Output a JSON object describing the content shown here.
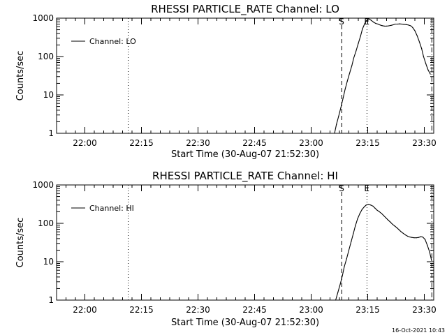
{
  "timestamp": "16-Oct-2021 10:43",
  "chart_data": [
    {
      "type": "line",
      "title": "RHESSI PARTICLE_RATE Channel: LO",
      "xlabel": "Start Time (30-Aug-07 21:52:30)",
      "ylabel": "Counts/sec",
      "x_unit": "minutes after 21:52:30",
      "xlim": [
        0,
        100
      ],
      "ylim": [
        1,
        1000
      ],
      "yscale": "log",
      "xticks": [
        {
          "label": "22:00",
          "x": 7.5
        },
        {
          "label": "22:15",
          "x": 22.5
        },
        {
          "label": "22:30",
          "x": 37.5
        },
        {
          "label": "22:45",
          "x": 52.5
        },
        {
          "label": "23:00",
          "x": 67.5
        },
        {
          "label": "23:15",
          "x": 82.5
        },
        {
          "label": "23:30",
          "x": 97.5
        }
      ],
      "yticks": [
        {
          "label": "1",
          "v": 1
        },
        {
          "label": "10",
          "v": 10
        },
        {
          "label": "100",
          "v": 100
        },
        {
          "label": "1000",
          "v": 1000
        }
      ],
      "legend": {
        "label": "Channel: LO",
        "position": "top-left"
      },
      "vlines": [
        {
          "x": 19.0,
          "style": "dotted"
        },
        {
          "x": 75.6,
          "style": "dashed",
          "label": "S"
        },
        {
          "x": 82.3,
          "style": "dotted",
          "label": "E"
        },
        {
          "x": 99.5,
          "style": "dashdot"
        }
      ],
      "series": [
        {
          "name": "Channel: LO",
          "x": [
            73.7,
            74.2,
            74.8,
            75.4,
            76.0,
            76.5,
            77.1,
            77.7,
            78.3,
            78.8,
            79.4,
            80.0,
            80.6,
            81.1,
            81.7,
            82.3,
            82.9,
            83.4,
            84.0,
            84.6,
            85.2,
            85.8,
            86.3,
            86.9,
            87.5,
            88.1,
            88.7,
            89.2,
            89.8,
            90.4,
            91.0,
            91.5,
            92.1,
            92.7,
            93.3,
            93.9,
            94.4,
            95.0,
            95.6,
            96.2,
            96.8,
            97.3,
            97.9,
            98.5,
            99.1
          ],
          "y": [
            1,
            1.7,
            2.8,
            4.8,
            8.5,
            14,
            23,
            37,
            58,
            92,
            140,
            220,
            340,
            520,
            720,
            900,
            950,
            880,
            790,
            730,
            700,
            660,
            640,
            620,
            620,
            630,
            650,
            670,
            700,
            700,
            710,
            700,
            690,
            680,
            660,
            630,
            570,
            470,
            350,
            240,
            160,
            100,
            65,
            45,
            35
          ]
        }
      ]
    },
    {
      "type": "line",
      "title": "RHESSI PARTICLE_RATE Channel: HI",
      "xlabel": "Start Time (30-Aug-07 21:52:30)",
      "ylabel": "Counts/sec",
      "x_unit": "minutes after 21:52:30",
      "xlim": [
        0,
        100
      ],
      "ylim": [
        1,
        1000
      ],
      "yscale": "log",
      "xticks": [
        {
          "label": "22:00",
          "x": 7.5
        },
        {
          "label": "22:15",
          "x": 22.5
        },
        {
          "label": "22:30",
          "x": 37.5
        },
        {
          "label": "22:45",
          "x": 52.5
        },
        {
          "label": "23:00",
          "x": 67.5
        },
        {
          "label": "23:15",
          "x": 82.5
        },
        {
          "label": "23:30",
          "x": 97.5
        }
      ],
      "yticks": [
        {
          "label": "1",
          "v": 1
        },
        {
          "label": "10",
          "v": 10
        },
        {
          "label": "100",
          "v": 100
        },
        {
          "label": "1000",
          "v": 1000
        }
      ],
      "legend": {
        "label": "Channel: HI",
        "position": "top-left"
      },
      "vlines": [
        {
          "x": 19.0,
          "style": "dotted"
        },
        {
          "x": 75.6,
          "style": "dashed",
          "label": "S"
        },
        {
          "x": 82.3,
          "style": "dotted",
          "label": "E"
        },
        {
          "x": 99.5,
          "style": "dashdot"
        }
      ],
      "series": [
        {
          "name": "Channel: HI",
          "x": [
            74.0,
            74.6,
            75.2,
            75.8,
            76.3,
            76.9,
            77.5,
            78.1,
            78.7,
            79.2,
            79.8,
            80.4,
            81.0,
            81.6,
            82.1,
            82.7,
            83.3,
            83.9,
            84.4,
            85.0,
            85.6,
            86.2,
            86.7,
            87.3,
            87.9,
            88.5,
            89.0,
            89.6,
            90.2,
            90.8,
            91.3,
            91.9,
            92.5,
            93.1,
            93.7,
            94.2,
            94.8,
            95.4,
            96.0,
            96.6,
            97.1,
            97.7,
            98.3,
            98.9,
            99.4
          ],
          "y": [
            1,
            1.6,
            2.6,
            4.4,
            7.5,
            12,
            20,
            33,
            55,
            85,
            130,
            180,
            230,
            270,
            300,
            310,
            300,
            280,
            250,
            220,
            200,
            180,
            160,
            140,
            122,
            108,
            96,
            86,
            77,
            68,
            61,
            55,
            50,
            46,
            44,
            43,
            42,
            42,
            43,
            45,
            44,
            38,
            27,
            18,
            11
          ]
        }
      ]
    }
  ]
}
